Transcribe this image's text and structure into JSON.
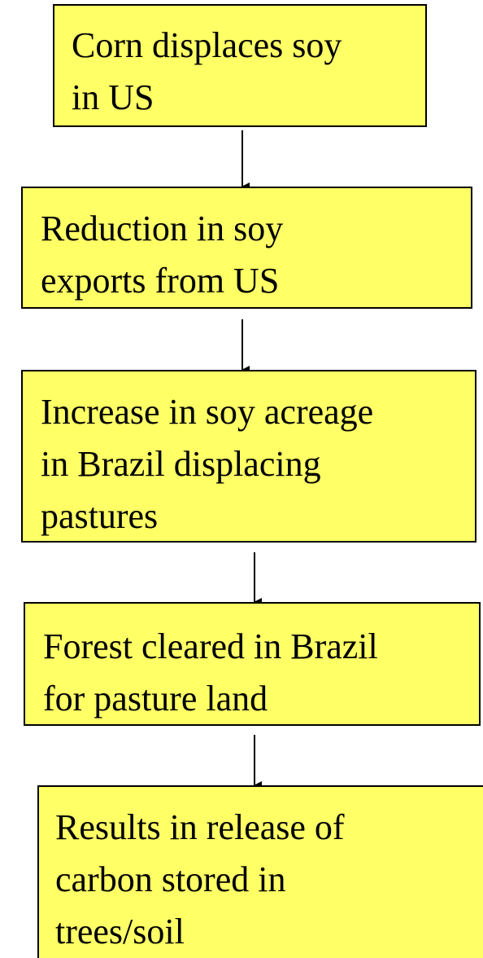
{
  "nodes": [
    {
      "lines": [
        "Corn displaces soy",
        "in US"
      ]
    },
    {
      "lines": [
        "Reduction in soy",
        "exports from US"
      ]
    },
    {
      "lines": [
        "Increase in soy acreage",
        "in Brazil displacing",
        "pastures"
      ]
    },
    {
      "lines": [
        "Forest cleared in Brazil",
        "for pasture land"
      ]
    },
    {
      "lines": [
        "Results in release of",
        "carbon stored in",
        "trees/soil"
      ]
    }
  ]
}
